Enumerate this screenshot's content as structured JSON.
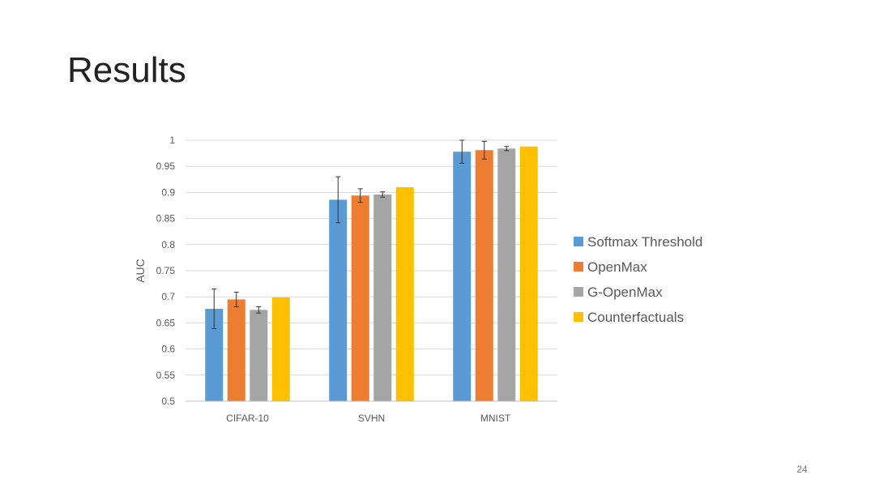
{
  "slide": {
    "title": "Results",
    "page_number": "24"
  },
  "colors": {
    "softmax": "#5B9BD5",
    "openmax": "#ED7D31",
    "gopenmax": "#A5A5A5",
    "counterfactuals": "#FFC000",
    "grid": "#D9D9D9",
    "axis_text": "#595959"
  },
  "chart_data": {
    "type": "bar",
    "title": "",
    "xlabel": "",
    "ylabel": "AUC",
    "ylim": [
      0.5,
      1
    ],
    "yticks": [
      "0.5",
      "0.55",
      "0.6",
      "0.65",
      "0.7",
      "0.75",
      "0.8",
      "0.85",
      "0.9",
      "0.95",
      "1"
    ],
    "categories": [
      "CIFAR-10",
      "SVHN",
      "MNIST"
    ],
    "grid": true,
    "legend_position": "right",
    "series": [
      {
        "name": "Softmax Threshold",
        "color": "#5B9BD5",
        "values": [
          0.677,
          0.886,
          0.978
        ],
        "error": [
          0.038,
          0.044,
          0.022
        ]
      },
      {
        "name": "OpenMax",
        "color": "#ED7D31",
        "values": [
          0.695,
          0.894,
          0.981
        ],
        "error": [
          0.014,
          0.013,
          0.017
        ]
      },
      {
        "name": "G-OpenMax",
        "color": "#A5A5A5",
        "values": [
          0.675,
          0.896,
          0.984
        ],
        "error": [
          0.006,
          0.005,
          0.004
        ]
      },
      {
        "name": "Counterfactuals",
        "color": "#FFC000",
        "values": [
          0.699,
          0.91,
          0.988
        ],
        "error": [
          0,
          0,
          0
        ]
      }
    ]
  }
}
